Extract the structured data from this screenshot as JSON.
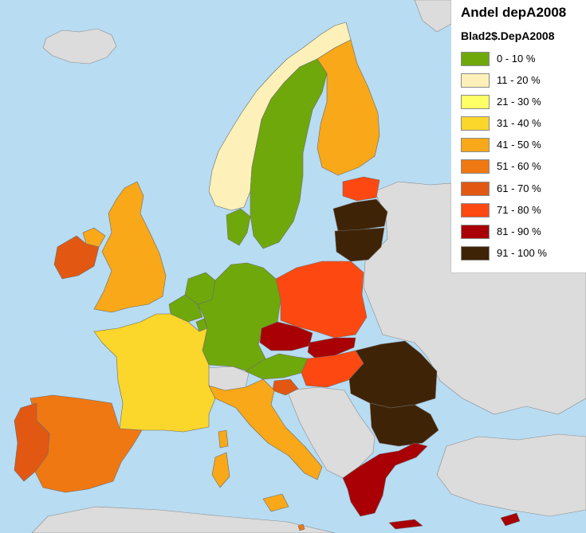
{
  "legend": {
    "title": "Andel depA2008",
    "subtitle": "Blad2$.DepA2008",
    "classes": [
      {
        "label": "0 - 10 %",
        "color": "#6fa80b"
      },
      {
        "label": "11 - 20 %",
        "color": "#fdf0b8"
      },
      {
        "label": "21 - 30 %",
        "color": "#ffff66"
      },
      {
        "label": "31 - 40 %",
        "color": "#fbd62b"
      },
      {
        "label": "41 - 50 %",
        "color": "#f8a818"
      },
      {
        "label": "51 - 60 %",
        "color": "#f07812"
      },
      {
        "label": "61 - 70 %",
        "color": "#e25813"
      },
      {
        "label": "71 - 80 %",
        "color": "#fe4812"
      },
      {
        "label": "81 - 90 %",
        "color": "#a80005"
      },
      {
        "label": "91 - 100 %",
        "color": "#3f2306"
      }
    ]
  },
  "colors": {
    "sea": "#b8dcf2",
    "non_eu_land": "#dcdcdc",
    "border": "#6b6b6b"
  },
  "countries": [
    {
      "id": "norway",
      "class": 1
    },
    {
      "id": "sweden",
      "class": 0
    },
    {
      "id": "finland",
      "class": 4
    },
    {
      "id": "denmark",
      "class": 0
    },
    {
      "id": "estonia",
      "class": 7
    },
    {
      "id": "latvia",
      "class": 9
    },
    {
      "id": "lithuania",
      "class": 9
    },
    {
      "id": "united-kingdom",
      "class": 4
    },
    {
      "id": "ireland",
      "class": 6
    },
    {
      "id": "northern-ireland",
      "class": 4
    },
    {
      "id": "netherlands",
      "class": 0
    },
    {
      "id": "belgium",
      "class": 0
    },
    {
      "id": "luxembourg",
      "class": 0
    },
    {
      "id": "germany",
      "class": 0
    },
    {
      "id": "poland",
      "class": 7
    },
    {
      "id": "france",
      "class": 3
    },
    {
      "id": "czech-republic",
      "class": 8
    },
    {
      "id": "slovakia",
      "class": 8
    },
    {
      "id": "austria",
      "class": 0
    },
    {
      "id": "hungary",
      "class": 7
    },
    {
      "id": "slovenia",
      "class": 6
    },
    {
      "id": "switzerland",
      "class": null
    },
    {
      "id": "italy",
      "class": 4
    },
    {
      "id": "spain",
      "class": 5
    },
    {
      "id": "portugal",
      "class": 6
    },
    {
      "id": "romania",
      "class": 9
    },
    {
      "id": "bulgaria",
      "class": 9
    },
    {
      "id": "greece",
      "class": 8
    },
    {
      "id": "cyprus",
      "class": 8
    },
    {
      "id": "malta",
      "class": 5
    }
  ]
}
